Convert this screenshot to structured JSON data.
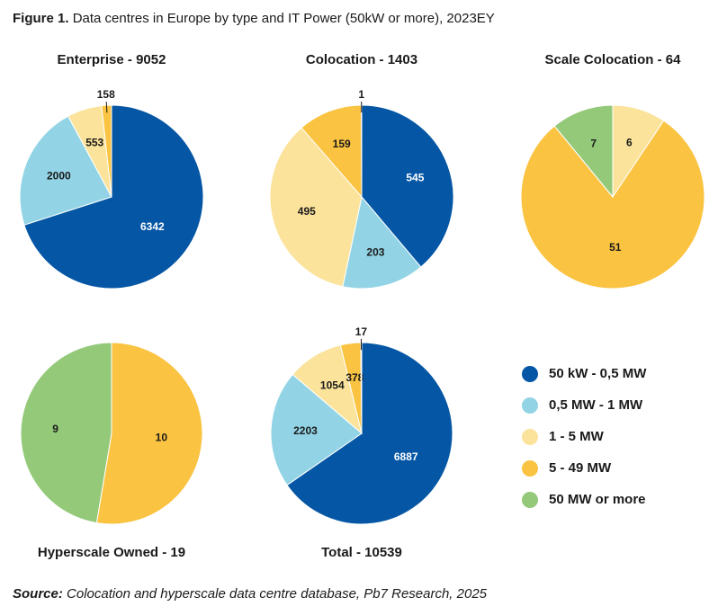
{
  "figure": {
    "label": "Figure 1.",
    "title": "Data centres in Europe by type and IT Power (50kW or more), 2023EY"
  },
  "source": {
    "label": "Source:",
    "text": "Colocation and hyperscale data centre database, Pb7 Research, 2025"
  },
  "colors": {
    "50 kW - 0,5 MW": "#0556a4",
    "0,5 MW - 1 MW": "#92d4e5",
    "1 - 5 MW": "#fbe39b",
    "5 - 49 MW": "#fac341",
    "50 MW or more": "#94c97a"
  },
  "chart_data": [
    {
      "type": "pie",
      "title": "Enterprise - 9052",
      "labels": [
        "50 kW - 0,5 MW",
        "0,5 MW - 1 MW",
        "1 - 5 MW",
        "5 - 49 MW"
      ],
      "values": [
        6342,
        2000,
        553,
        158
      ]
    },
    {
      "type": "pie",
      "title": "Colocation - 1403",
      "labels": [
        "50 kW - 0,5 MW",
        "0,5 MW - 1 MW",
        "1 - 5 MW",
        "5 - 49 MW",
        "50 MW or more"
      ],
      "values": [
        545,
        203,
        495,
        159,
        1
      ]
    },
    {
      "type": "pie",
      "title": "Scale Colocation - 64",
      "labels": [
        "1 - 5 MW",
        "5 - 49 MW",
        "50 MW or more"
      ],
      "values": [
        6,
        51,
        7
      ]
    },
    {
      "type": "pie",
      "title": "Hyperscale Owned - 19",
      "labels": [
        "5 - 49 MW",
        "50 MW or more"
      ],
      "values": [
        10,
        9
      ]
    },
    {
      "type": "pie",
      "title": "Total - 10539",
      "labels": [
        "50 kW - 0,5 MW",
        "0,5 MW - 1 MW",
        "1 - 5 MW",
        "5 - 49 MW",
        "50 MW or more"
      ],
      "values": [
        6887,
        2203,
        1054,
        378,
        17
      ]
    }
  ],
  "legend": [
    "50 kW - 0,5 MW",
    "0,5 MW - 1 MW",
    "1 - 5 MW",
    "5 - 49 MW",
    "50 MW or more"
  ]
}
